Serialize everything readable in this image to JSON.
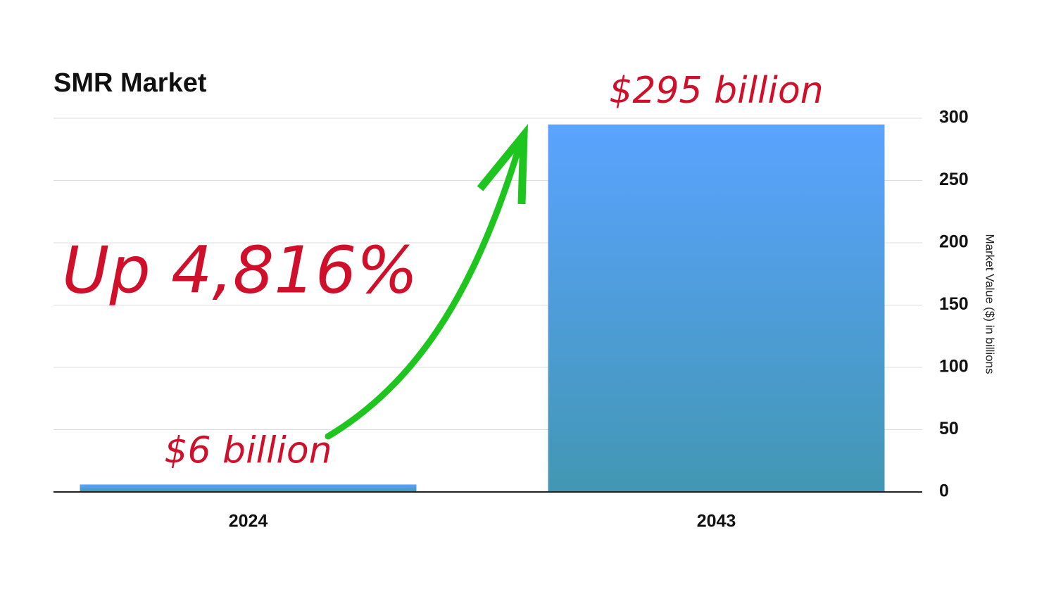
{
  "chart_data": {
    "type": "bar",
    "title": "SMR Market",
    "annotation": "Up 4,816%",
    "categories": [
      "2024",
      "2043"
    ],
    "values": [
      6,
      295
    ],
    "value_labels": [
      "$6 billion",
      "$295 billion"
    ],
    "gradient": [
      "#5aa3ff",
      "#4297b3"
    ],
    "y_axis_label": "Market Value ($) in billions",
    "y_axis_side": "right",
    "ylim": [
      0,
      300
    ],
    "yticks": [
      0,
      50,
      100,
      150,
      200,
      250,
      300
    ],
    "grid": true
  }
}
